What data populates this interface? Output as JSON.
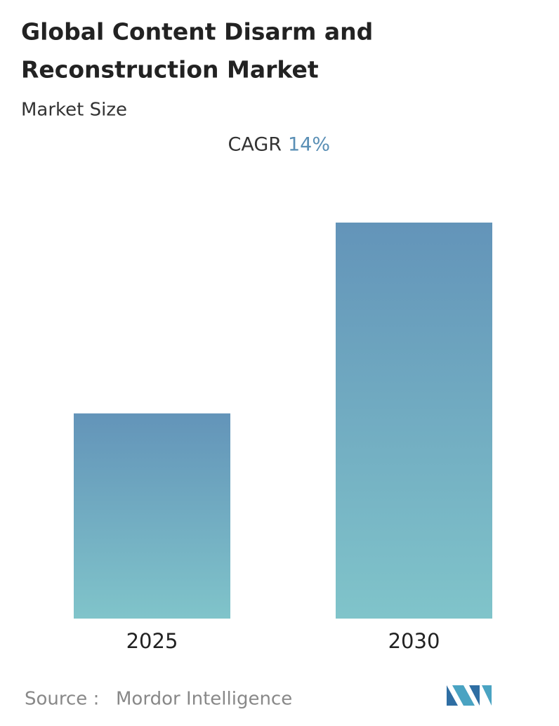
{
  "chart_data": {
    "type": "bar",
    "title": [
      "Global Content Disarm and",
      "Reconstruction Market"
    ],
    "subtitle": "Market Size",
    "cagr_label": "CAGR",
    "cagr_value": "14%",
    "categories": [
      "2025",
      "2030"
    ],
    "values": [
      1,
      1.93
    ],
    "color": [
      "#6394b9",
      "#80c4ca"
    ],
    "source_label": "Source :",
    "source": "Mordor Intelligence"
  }
}
